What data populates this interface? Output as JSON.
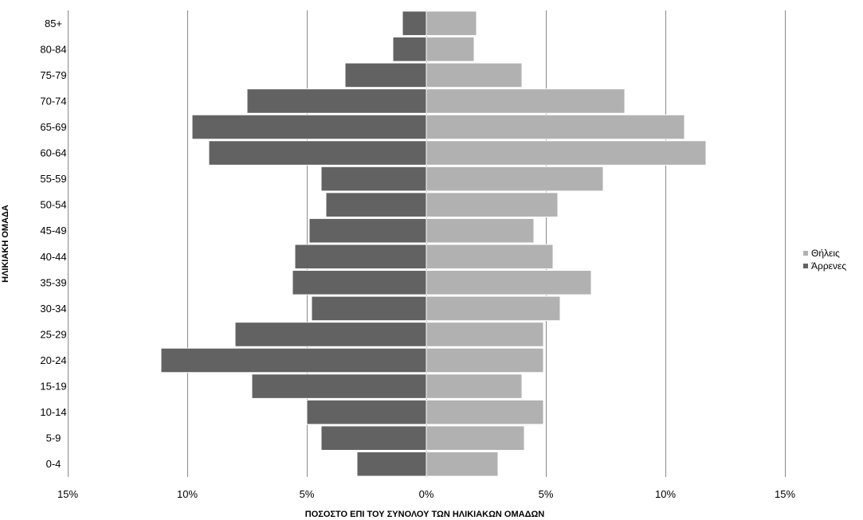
{
  "chart_data": {
    "type": "bar",
    "orientation": "horizontal",
    "title": "",
    "xlabel": "ΠΟΣΟΣΤΟ ΕΠΙ ΤΟΥ ΣΥΝΟΛΟΥ ΤΩΝ ΗΛΙΚΙΑΚΩΝ ΟΜΑΔΩΝ",
    "ylabel": "ΗΛΙΚΙΑΚΗ ΟΜΑΔΑ",
    "categories": [
      "0-4",
      "5-9",
      "10-14",
      "15-19",
      "20-24",
      "25-29",
      "30-34",
      "35-39",
      "40-44",
      "45-49",
      "50-54",
      "55-59",
      "60-64",
      "65-69",
      "70-74",
      "75-79",
      "80-84",
      "85+"
    ],
    "x_ticks": [
      -15,
      -10,
      -5,
      0,
      5,
      10,
      15
    ],
    "x_tick_labels": [
      "15%",
      "10%",
      "5%",
      "0%",
      "5%",
      "10%",
      "15%"
    ],
    "xlim": [
      -15,
      15
    ],
    "grid": true,
    "legend_position": "right",
    "series": [
      {
        "name": "Θήλεις",
        "color": "#b1b1b1",
        "values": [
          3.0,
          4.1,
          4.9,
          4.0,
          4.9,
          4.9,
          5.6,
          6.9,
          5.3,
          4.5,
          5.5,
          7.4,
          11.7,
          10.8,
          8.3,
          4.0,
          2.0,
          2.1
        ]
      },
      {
        "name": "Άρρενες",
        "color": "#626262",
        "values": [
          -2.9,
          -4.4,
          -5.0,
          -7.3,
          -11.1,
          -8.0,
          -4.8,
          -5.6,
          -5.5,
          -4.9,
          -4.2,
          -4.4,
          -9.1,
          -9.8,
          -7.5,
          -3.4,
          -1.4,
          -1.0
        ]
      }
    ]
  }
}
